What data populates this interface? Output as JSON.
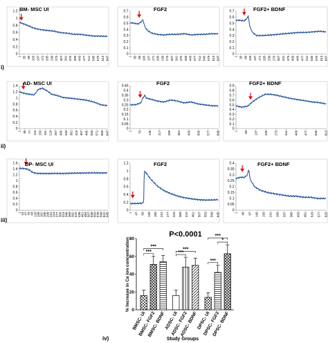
{
  "row_labels": [
    "i)",
    "ii)",
    "iii)",
    "iv)"
  ],
  "chart_data": [
    {
      "id": "p1",
      "type": "line",
      "title": "BM- MSC UI",
      "ylim": [
        0,
        1.2
      ],
      "yticks": [
        "0",
        "0.2",
        "0.4",
        "0.6",
        "0.8",
        "1",
        "1.2"
      ],
      "xticks": [
        "1",
        "35",
        "69",
        "103",
        "137",
        "171",
        "205",
        "239",
        "273",
        "307",
        "341",
        "375",
        "409",
        "443",
        "477",
        "511",
        "545",
        "579",
        "613",
        "647"
      ],
      "points": [
        [
          1,
          0.88
        ],
        [
          20,
          0.86
        ],
        [
          40,
          0.83
        ],
        [
          60,
          0.8
        ],
        [
          80,
          0.77
        ],
        [
          100,
          0.73
        ],
        [
          130,
          0.7
        ],
        [
          160,
          0.68
        ],
        [
          200,
          0.66
        ],
        [
          250,
          0.64
        ],
        [
          300,
          0.6
        ],
        [
          350,
          0.58
        ],
        [
          400,
          0.55
        ],
        [
          450,
          0.55
        ],
        [
          500,
          0.52
        ],
        [
          550,
          0.5
        ],
        [
          600,
          0.5
        ],
        [
          647,
          0.49
        ]
      ],
      "arrow_x": 15,
      "arrow_y": 0.95
    },
    {
      "id": "p2",
      "type": "line",
      "title": "FGF2",
      "ylim": [
        0,
        0.7
      ],
      "yticks": [
        "0",
        "0.1",
        "0.2",
        "0.3",
        "0.4",
        "0.5",
        "0.6",
        "0.7"
      ],
      "xticks": [
        "1",
        "35",
        "69",
        "103",
        "137",
        "171",
        "205",
        "239",
        "273",
        "307",
        "341",
        "375",
        "409",
        "443",
        "477",
        "511",
        "545",
        "579",
        "613",
        "647"
      ],
      "points": [
        [
          1,
          0.51
        ],
        [
          30,
          0.5
        ],
        [
          60,
          0.49
        ],
        [
          80,
          0.52
        ],
        [
          95,
          0.56
        ],
        [
          110,
          0.44
        ],
        [
          130,
          0.38
        ],
        [
          160,
          0.34
        ],
        [
          200,
          0.32
        ],
        [
          250,
          0.31
        ],
        [
          300,
          0.32
        ],
        [
          350,
          0.32
        ],
        [
          400,
          0.33
        ],
        [
          450,
          0.31
        ],
        [
          500,
          0.32
        ],
        [
          550,
          0.32
        ],
        [
          600,
          0.33
        ],
        [
          647,
          0.33
        ]
      ],
      "arrow_x": 68,
      "arrow_y": 0.6
    },
    {
      "id": "p3",
      "type": "line",
      "title": "FGF2+ BDNF",
      "ylim": [
        0,
        0.7
      ],
      "yticks": [
        "0",
        "0.1",
        "0.2",
        "0.3",
        "0.4",
        "0.5",
        "0.6",
        "0.7"
      ],
      "xticks": [
        "1",
        "35",
        "69",
        "103",
        "137",
        "171",
        "205",
        "239",
        "273",
        "307",
        "341",
        "375",
        "409",
        "443",
        "477",
        "511",
        "545",
        "579",
        "613",
        "647"
      ],
      "points": [
        [
          1,
          0.55
        ],
        [
          30,
          0.55
        ],
        [
          60,
          0.54
        ],
        [
          80,
          0.58
        ],
        [
          90,
          0.62
        ],
        [
          100,
          0.45
        ],
        [
          120,
          0.35
        ],
        [
          150,
          0.3
        ],
        [
          200,
          0.3
        ],
        [
          250,
          0.31
        ],
        [
          300,
          0.32
        ],
        [
          350,
          0.33
        ],
        [
          400,
          0.34
        ],
        [
          450,
          0.35
        ],
        [
          500,
          0.35
        ],
        [
          550,
          0.36
        ],
        [
          600,
          0.37
        ],
        [
          647,
          0.36
        ]
      ],
      "arrow_x": 60,
      "arrow_y": 0.64
    },
    {
      "id": "p4",
      "type": "line",
      "title": "AD- MSC UI",
      "ylim": [
        0,
        1.4
      ],
      "yticks": [
        "0",
        "0.2",
        "0.4",
        "0.6",
        "0.8",
        "1",
        "1.2",
        "1.4"
      ],
      "xticks": [
        "1",
        "39",
        "77",
        "115",
        "153",
        "191",
        "229",
        "267",
        "305",
        "343",
        "381",
        "419",
        "457",
        "495",
        "533",
        "571",
        "609",
        "647"
      ],
      "points": [
        [
          1,
          1.2
        ],
        [
          40,
          1.15
        ],
        [
          80,
          1.12
        ],
        [
          110,
          1.1
        ],
        [
          140,
          1.28
        ],
        [
          170,
          1.32
        ],
        [
          200,
          1.25
        ],
        [
          240,
          1.12
        ],
        [
          280,
          1.08
        ],
        [
          320,
          1.02
        ],
        [
          360,
          1.0
        ],
        [
          400,
          0.98
        ],
        [
          440,
          0.96
        ],
        [
          480,
          0.94
        ],
        [
          520,
          0.9
        ],
        [
          560,
          0.85
        ],
        [
          600,
          0.78
        ],
        [
          647,
          0.75
        ]
      ],
      "arrow_x": 30,
      "arrow_y": 1.3
    },
    {
      "id": "p5",
      "type": "line",
      "title": "FGF2",
      "ylim": [
        0,
        0.45
      ],
      "yticks": [
        "0",
        "0.05",
        "0.1",
        "0.15",
        "0.2",
        "0.25",
        "0.3",
        "0.35",
        "0.4",
        "0.45"
      ],
      "xticks": [
        "1",
        "73",
        "145",
        "217",
        "289",
        "361",
        "433",
        "505",
        "577",
        "649"
      ],
      "points": [
        [
          1,
          0.25
        ],
        [
          40,
          0.25
        ],
        [
          80,
          0.27
        ],
        [
          95,
          0.32
        ],
        [
          110,
          0.35
        ],
        [
          120,
          0.32
        ],
        [
          150,
          0.31
        ],
        [
          200,
          0.29
        ],
        [
          250,
          0.28
        ],
        [
          300,
          0.3
        ],
        [
          350,
          0.29
        ],
        [
          400,
          0.27
        ],
        [
          450,
          0.28
        ],
        [
          500,
          0.26
        ],
        [
          550,
          0.25
        ],
        [
          600,
          0.24
        ],
        [
          649,
          0.24
        ]
      ],
      "arrow_x": 75,
      "arrow_y": 0.33
    },
    {
      "id": "p6",
      "type": "line",
      "title": "FGF2+ BDNF",
      "ylim": [
        0,
        0.9
      ],
      "yticks": [
        "0",
        "0.1",
        "0.2",
        "0.3",
        "0.4",
        "0.5",
        "0.6",
        "0.7",
        "0.8",
        "0.9"
      ],
      "xticks": [
        "1",
        "69",
        "137",
        "205",
        "273",
        "341",
        "409",
        "477",
        "545",
        "613"
      ],
      "points": [
        [
          1,
          0.48
        ],
        [
          40,
          0.45
        ],
        [
          80,
          0.47
        ],
        [
          120,
          0.58
        ],
        [
          160,
          0.66
        ],
        [
          200,
          0.72
        ],
        [
          240,
          0.72
        ],
        [
          280,
          0.7
        ],
        [
          320,
          0.67
        ],
        [
          360,
          0.64
        ],
        [
          400,
          0.62
        ],
        [
          440,
          0.6
        ],
        [
          480,
          0.58
        ],
        [
          520,
          0.56
        ],
        [
          560,
          0.55
        ],
        [
          613,
          0.52
        ]
      ],
      "arrow_x": 100,
      "arrow_y": 0.62
    },
    {
      "id": "p7",
      "type": "line",
      "title": "DP- MSC UI",
      "ylim": [
        0,
        1.6
      ],
      "yticks": [
        "0",
        "0.2",
        "0.4",
        "0.6",
        "0.8",
        "1",
        "1.2",
        "1.4",
        "1.6"
      ],
      "xticks": [
        "1",
        "24",
        "47",
        "70",
        "93",
        "116",
        "139",
        "162",
        "185",
        "208",
        "231",
        "254",
        "277",
        "300",
        "323",
        "346",
        "369",
        "392",
        "415",
        "438",
        "461",
        "484",
        "507",
        "530",
        "553",
        "576",
        "599",
        "622",
        "645"
      ],
      "points": [
        [
          1,
          1.42
        ],
        [
          30,
          1.42
        ],
        [
          60,
          1.4
        ],
        [
          80,
          1.35
        ],
        [
          100,
          1.28
        ],
        [
          130,
          1.25
        ],
        [
          200,
          1.25
        ],
        [
          300,
          1.25
        ],
        [
          400,
          1.26
        ],
        [
          500,
          1.27
        ],
        [
          600,
          1.27
        ],
        [
          645,
          1.27
        ]
      ],
      "arrow_x": 50,
      "arrow_y": 1.55
    },
    {
      "id": "p8",
      "type": "line",
      "title": "FGF2",
      "ylim": [
        0,
        1.2
      ],
      "yticks": [
        "0",
        "0.2",
        "0.4",
        "0.6",
        "0.8",
        "1",
        "1.2"
      ],
      "xticks": [
        "1",
        "47",
        "93",
        "139",
        "185",
        "231",
        "277",
        "323",
        "369",
        "415",
        "461",
        "507",
        "553",
        "599",
        "645"
      ],
      "points": [
        [
          1,
          0.17
        ],
        [
          40,
          0.17
        ],
        [
          90,
          0.18
        ],
        [
          100,
          0.2
        ],
        [
          105,
          1.0
        ],
        [
          120,
          0.95
        ],
        [
          150,
          0.8
        ],
        [
          200,
          0.62
        ],
        [
          250,
          0.5
        ],
        [
          300,
          0.42
        ],
        [
          350,
          0.36
        ],
        [
          400,
          0.32
        ],
        [
          450,
          0.29
        ],
        [
          500,
          0.27
        ],
        [
          550,
          0.26
        ],
        [
          600,
          0.26
        ],
        [
          645,
          0.27
        ]
      ],
      "arrow_x": 20,
      "arrow_y": 0.32
    },
    {
      "id": "p9",
      "type": "line",
      "title": "FGF2+ BDNF",
      "ylim": [
        0,
        0.4
      ],
      "yticks": [
        "0",
        "0.05",
        "0.1",
        "0.15",
        "0.2",
        "0.25",
        "0.3",
        "0.35",
        "0.4"
      ],
      "xticks": [
        "1",
        "49",
        "97",
        "145",
        "193",
        "241",
        "289",
        "337",
        "385",
        "433",
        "481",
        "529",
        "577",
        "625"
      ],
      "points": [
        [
          1,
          0.27
        ],
        [
          30,
          0.28
        ],
        [
          60,
          0.28
        ],
        [
          80,
          0.3
        ],
        [
          90,
          0.35
        ],
        [
          100,
          0.26
        ],
        [
          130,
          0.2
        ],
        [
          170,
          0.17
        ],
        [
          220,
          0.15
        ],
        [
          270,
          0.14
        ],
        [
          320,
          0.13
        ],
        [
          370,
          0.12
        ],
        [
          420,
          0.12
        ],
        [
          470,
          0.11
        ],
        [
          520,
          0.11
        ],
        [
          570,
          0.1
        ],
        [
          625,
          0.1
        ]
      ],
      "arrow_x": 45,
      "arrow_y": 0.33
    },
    {
      "id": "bar",
      "type": "bar",
      "title": "P<0.0001",
      "xlabel": "Study Groups",
      "ylabel": "% Increase in Ca ion concentration",
      "ylim": [
        0,
        80
      ],
      "yticks": [
        "0",
        "20",
        "40",
        "60",
        "80"
      ],
      "categories": [
        "BMSC- UI",
        "BMSC- FGF2",
        "BMSC- BDNF",
        "ADSC- UI",
        "ADSC- FGF2",
        "ADSC- BDNF",
        "DPSC- UI",
        "DPSC- FGF2",
        "DPSC- BDNF"
      ],
      "values": [
        16,
        51,
        54,
        16,
        48,
        50,
        14,
        42,
        63
      ],
      "errors": [
        6,
        9,
        7,
        6,
        11,
        8,
        5,
        8,
        10
      ],
      "significance": [
        {
          "from": 0,
          "to": 1,
          "label": "***"
        },
        {
          "from": 0,
          "to": 2,
          "label": "***"
        },
        {
          "from": 3,
          "to": 4,
          "label": "***"
        },
        {
          "from": 3,
          "to": 5,
          "label": "***"
        },
        {
          "from": 6,
          "to": 7,
          "label": "***"
        },
        {
          "from": 6,
          "to": 8,
          "label": "***"
        },
        {
          "from": 7,
          "to": 8,
          "label": "*"
        }
      ]
    }
  ]
}
